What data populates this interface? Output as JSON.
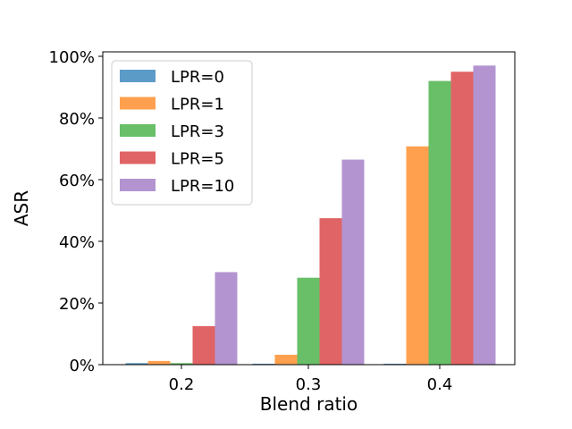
{
  "chart_data": {
    "type": "bar",
    "title": "",
    "xlabel": "Blend ratio",
    "ylabel": "ASR",
    "categories": [
      "0.2",
      "0.3",
      "0.4"
    ],
    "ylim": [
      0,
      100
    ],
    "y_ticks": [
      "0%",
      "20%",
      "40%",
      "60%",
      "80%",
      "100%"
    ],
    "y_tick_values": [
      0,
      20,
      40,
      60,
      80,
      100
    ],
    "legend_position": "top-left",
    "grid": false,
    "series": [
      {
        "name": "LPR=0",
        "color": "#5b9bc8",
        "values": [
          0.5,
          0.3,
          0.3
        ]
      },
      {
        "name": "LPR=1",
        "color": "#ffa04f",
        "values": [
          1.2,
          3.2,
          70.8
        ]
      },
      {
        "name": "LPR=3",
        "color": "#68bf68",
        "values": [
          0.5,
          28.2,
          92.0
        ]
      },
      {
        "name": "LPR=5",
        "color": "#e06465",
        "values": [
          12.5,
          47.5,
          95.0
        ]
      },
      {
        "name": "LPR=10",
        "color": "#b394d0",
        "values": [
          30.0,
          66.5,
          97.0
        ]
      }
    ]
  }
}
